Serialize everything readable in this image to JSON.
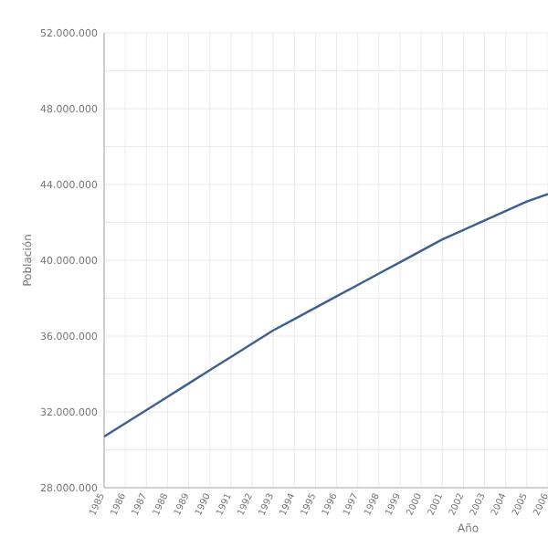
{
  "chart_data": {
    "type": "line",
    "xlabel": "Año",
    "ylabel": "Población",
    "categories": [
      "1985",
      "1986",
      "1987",
      "1988",
      "1989",
      "1990",
      "1991",
      "1992",
      "1993",
      "1994",
      "1995",
      "1996",
      "1997",
      "1998",
      "1999",
      "2000",
      "2001",
      "2002",
      "2003",
      "2004",
      "2005",
      "2006"
    ],
    "series": [
      {
        "color": "#3d5f8f",
        "values": [
          30700000,
          31400000,
          32100000,
          32800000,
          33500000,
          34200000,
          34900000,
          35600000,
          36300000,
          36900000,
          37500000,
          38100000,
          38700000,
          39300000,
          39900000,
          40500000,
          41100000,
          41600000,
          42100000,
          42600000,
          43100000,
          43500000
        ]
      }
    ],
    "ylim": [
      28000000,
      52000000
    ],
    "yticks": [
      {
        "value": 28000000,
        "label": "28.000.000"
      },
      {
        "value": 30000000,
        "label": null
      },
      {
        "value": 32000000,
        "label": "32.000.000"
      },
      {
        "value": 34000000,
        "label": null
      },
      {
        "value": 36000000,
        "label": "36.000.000"
      },
      {
        "value": 38000000,
        "label": null
      },
      {
        "value": 40000000,
        "label": "40.000.000"
      },
      {
        "value": 42000000,
        "label": null
      },
      {
        "value": 44000000,
        "label": "44.000.000"
      },
      {
        "value": 46000000,
        "label": null
      },
      {
        "value": 48000000,
        "label": "48.000.000"
      },
      {
        "value": 50000000,
        "label": null
      },
      {
        "value": 52000000,
        "label": "52.000.000"
      }
    ],
    "grid": true,
    "marker": "none",
    "line_style": "solid"
  }
}
